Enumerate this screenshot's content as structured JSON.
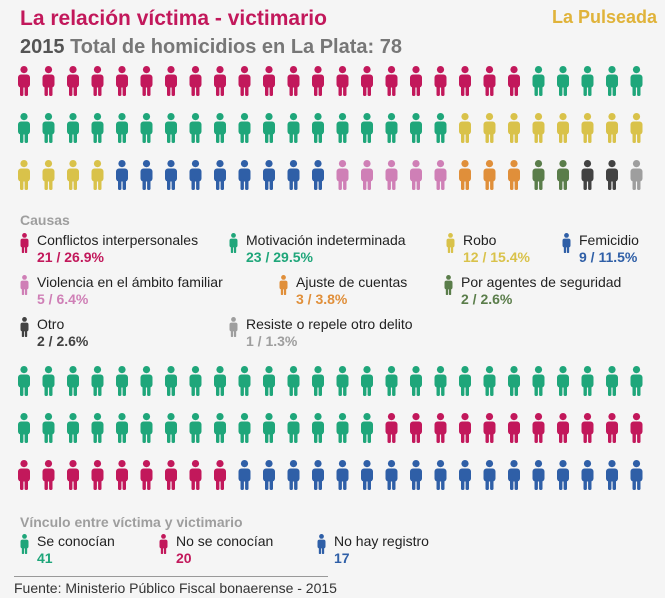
{
  "header": {
    "title": "La relación víctima - victimario",
    "brand": "La Pulseada",
    "year": "2015",
    "subtitle": "Total de homicidios en La Plata: 78"
  },
  "chart_data": [
    {
      "type": "pictogram",
      "title": "Causas",
      "total": 78,
      "series": [
        {
          "name": "Conflictos interpersonales",
          "count": 21,
          "value_label": "21 / 26.9%",
          "color": "#c2185b"
        },
        {
          "name": "Motivación indeterminada",
          "count": 23,
          "value_label": "23 / 29.5%",
          "color": "#1fa67a"
        },
        {
          "name": "Robo",
          "count": 12,
          "value_label": "12 / 15.4%",
          "color": "#d9c24a"
        },
        {
          "name": "Femicidio",
          "count": 9,
          "value_label": "9 / 11.5%",
          "color": "#2f5fa7"
        },
        {
          "name": "Violencia en el ámbito familiar",
          "count": 5,
          "value_label": "5 / 6.4%",
          "color": "#cf7fb6"
        },
        {
          "name": "Ajuste de cuentas",
          "count": 3,
          "value_label": "3 / 3.8%",
          "color": "#e08f3a"
        },
        {
          "name": "Por agentes de seguridad",
          "count": 2,
          "value_label": "2 / 2.6%",
          "color": "#5a7d4a"
        },
        {
          "name": "Otro",
          "count": 2,
          "value_label": "2 / 2.6%",
          "color": "#424242"
        },
        {
          "name": "Resiste o repele otro delito",
          "count": 1,
          "value_label": "1 / 1.3%",
          "color": "#9e9e9e"
        }
      ]
    },
    {
      "type": "pictogram",
      "title": "Vínculo entre víctima y victimario",
      "total": 78,
      "series": [
        {
          "name": "Se conocían",
          "count": 41,
          "value_label": "41",
          "color": "#1fa67a"
        },
        {
          "name": "No se conocían",
          "count": 20,
          "value_label": "20",
          "color": "#c2185b"
        },
        {
          "name": "No hay registro",
          "count": 17,
          "value_label": "17",
          "color": "#2f5fa7"
        }
      ]
    }
  ],
  "source": "Fuente: Ministerio Público Fiscal bonaerense - 2015"
}
